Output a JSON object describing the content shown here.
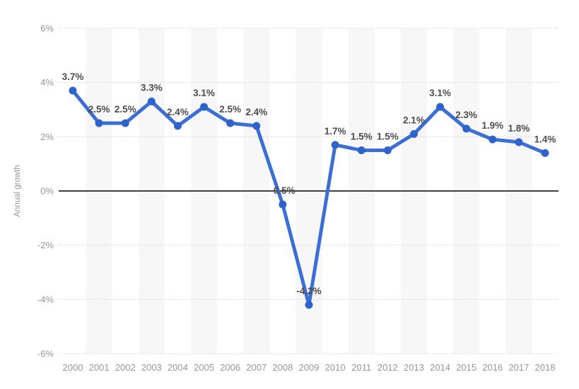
{
  "chart_data": {
    "type": "line",
    "title": "",
    "xlabel": "",
    "ylabel": "Annual growth",
    "x": [
      "2000",
      "2001",
      "2002",
      "2003",
      "2004",
      "2005",
      "2006",
      "2007",
      "2008",
      "2009",
      "2010",
      "2011",
      "2012",
      "2013",
      "2014",
      "2015",
      "2016",
      "2017",
      "2018"
    ],
    "values": [
      3.7,
      2.5,
      2.5,
      3.3,
      2.4,
      3.1,
      2.5,
      2.4,
      -0.5,
      -4.2,
      1.7,
      1.5,
      1.5,
      2.1,
      3.1,
      2.3,
      1.9,
      1.8,
      1.4
    ],
    "point_labels": [
      "3.7%",
      "2.5%",
      "2.5%",
      "3.3%",
      "2.4%",
      "3.1%",
      "2.5%",
      "2.4%",
      "-0.5%",
      "-4.2%",
      "1.7%",
      "1.5%",
      "1.5%",
      "2.1%",
      "3.1%",
      "2.3%",
      "1.9%",
      "1.8%",
      "1.4%"
    ],
    "y_ticks": [
      {
        "value": 6,
        "label": "6%"
      },
      {
        "value": 4,
        "label": "4%"
      },
      {
        "value": 2,
        "label": "2%"
      },
      {
        "value": 0,
        "label": "0%"
      },
      {
        "value": -2,
        "label": "-2%"
      },
      {
        "value": -4,
        "label": "-4%"
      },
      {
        "value": -6,
        "label": "-6%"
      }
    ],
    "ylim": [
      -6,
      6
    ],
    "grid": "horizontal-dotted",
    "zero_baseline": "solid",
    "legend": "none",
    "banded_x": [
      "2001",
      "2003",
      "2005",
      "2007",
      "2009",
      "2011",
      "2013",
      "2015",
      "2017"
    ]
  },
  "colors": {
    "background": "#ffffff",
    "band": "#f7f7f7",
    "grid": "#cccccc",
    "zero_line": "#3f3f3f",
    "line": "#3b6fd6",
    "marker": "#2f63cc",
    "axis_text": "#969696",
    "data_label": "#4d4d4d"
  }
}
